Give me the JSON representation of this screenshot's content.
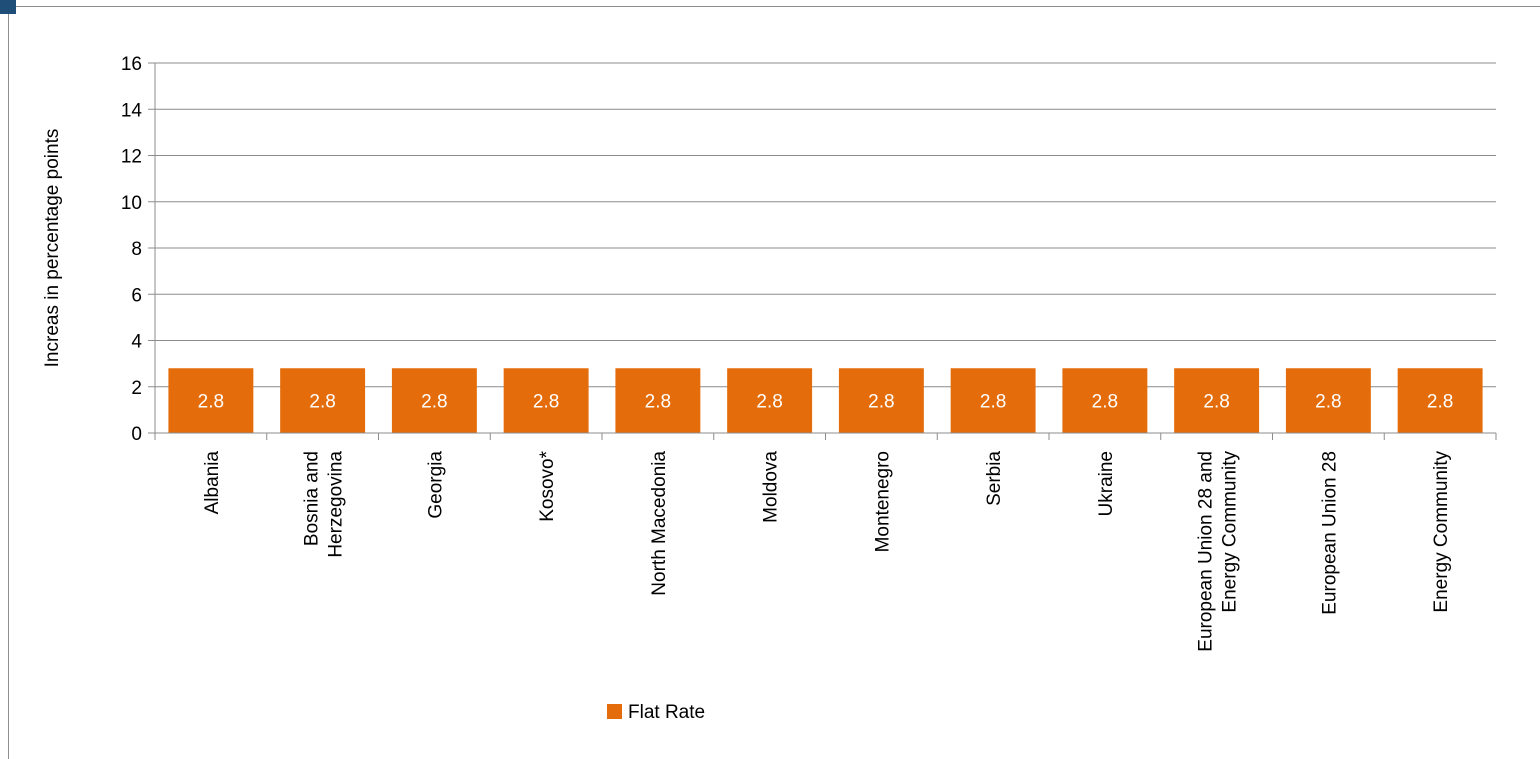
{
  "chart_data": {
    "type": "bar",
    "ylabel": "Increas in percentage points",
    "xlabel": "",
    "ylim": [
      0,
      16
    ],
    "yticks": [
      0,
      2,
      4,
      6,
      8,
      10,
      12,
      14,
      16
    ],
    "grid": true,
    "legend_position": "bottom",
    "categories": [
      [
        "Albania"
      ],
      [
        "Bosnia and",
        "Herzegovina"
      ],
      [
        "Georgia"
      ],
      [
        "Kosovo*"
      ],
      [
        "North Macedonia"
      ],
      [
        "Moldova"
      ],
      [
        "Montenegro"
      ],
      [
        "Serbia"
      ],
      [
        "Ukraine"
      ],
      [
        "European Union 28  and",
        "Energy Community"
      ],
      [
        "European Union 28"
      ],
      [
        "Energy Community"
      ]
    ],
    "series": [
      {
        "name": "Flat Rate",
        "color": "#e46c0a",
        "values": [
          2.8,
          2.8,
          2.8,
          2.8,
          2.8,
          2.8,
          2.8,
          2.8,
          2.8,
          2.8,
          2.8,
          2.8
        ],
        "data_labels": [
          "2.8",
          "2.8",
          "2.8",
          "2.8",
          "2.8",
          "2.8",
          "2.8",
          "2.8",
          "2.8",
          "2.8",
          "2.8",
          "2.8"
        ]
      }
    ]
  }
}
